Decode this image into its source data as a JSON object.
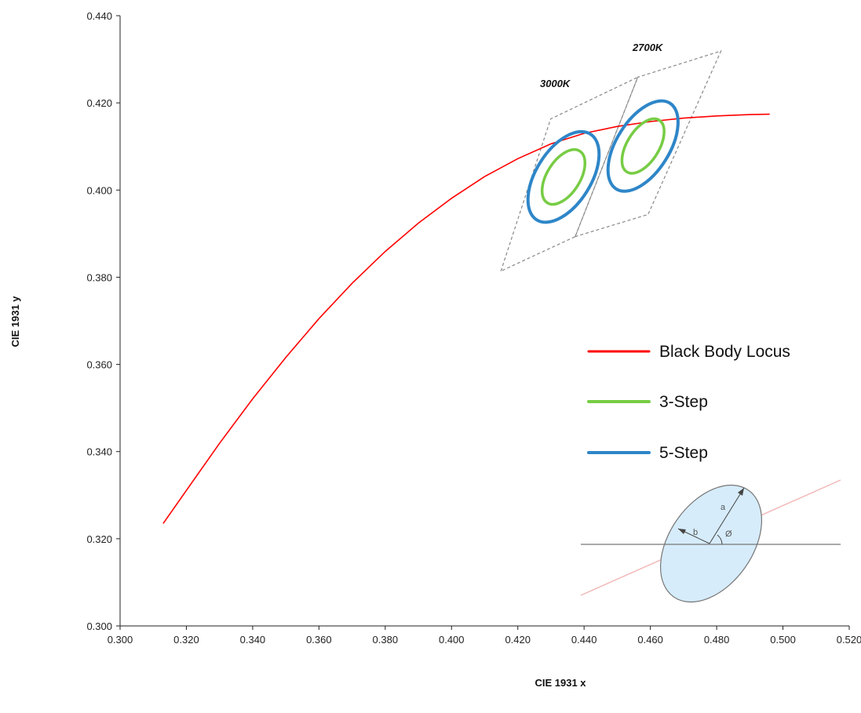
{
  "chart_data": {
    "type": "line",
    "title": "",
    "xlabel": "CIE 1931 x",
    "ylabel": "CIE 1931 y",
    "xlim": [
      0.3,
      0.52
    ],
    "ylim": [
      0.3,
      0.44
    ],
    "x_ticks": [
      "0.300",
      "0.320",
      "0.340",
      "0.360",
      "0.380",
      "0.400",
      "0.420",
      "0.440",
      "0.460",
      "0.480",
      "0.500",
      "0.520"
    ],
    "y_ticks": [
      "0.300",
      "0.320",
      "0.340",
      "0.360",
      "0.380",
      "0.400",
      "0.420",
      "0.440"
    ],
    "grid": false,
    "legend_position": "right",
    "series": [
      {
        "name": "Black Body Locus",
        "color": "#ff0000",
        "x": [
          0.313,
          0.32,
          0.33,
          0.34,
          0.35,
          0.36,
          0.37,
          0.38,
          0.39,
          0.4,
          0.41,
          0.42,
          0.43,
          0.44,
          0.45,
          0.46,
          0.47,
          0.48,
          0.49,
          0.496
        ],
        "y": [
          0.3235,
          0.3311,
          0.3419,
          0.3521,
          0.3616,
          0.3705,
          0.3786,
          0.3859,
          0.3924,
          0.3981,
          0.4031,
          0.4072,
          0.4106,
          0.413,
          0.4146,
          0.4157,
          0.4165,
          0.417,
          0.4173,
          0.4174
        ]
      },
      {
        "name": "3-Step",
        "color": "#77cc44",
        "ellipses": [
          {
            "cct": "3000K",
            "center_x": 0.4338,
            "center_y": 0.403,
            "semi_x": 0.005,
            "semi_y": 0.007,
            "tilt_deg": 58
          },
          {
            "cct": "2700K",
            "center_x": 0.4578,
            "center_y": 0.4101,
            "semi_x": 0.0048,
            "semi_y": 0.007,
            "tilt_deg": 58
          }
        ]
      },
      {
        "name": "5-Step",
        "color": "#2e86c8",
        "ellipses": [
          {
            "cct": "3000K",
            "center_x": 0.4338,
            "center_y": 0.403,
            "semi_x": 0.0083,
            "semi_y": 0.0116,
            "tilt_deg": 58
          },
          {
            "cct": "2700K",
            "center_x": 0.4578,
            "center_y": 0.4101,
            "semi_x": 0.008,
            "semi_y": 0.0116,
            "tilt_deg": 58
          }
        ]
      }
    ],
    "quadrangles": [
      {
        "label": "3000K",
        "x": [
          0.4149,
          0.4299,
          0.4562,
          0.4373
        ],
        "y": [
          0.3814,
          0.4163,
          0.4259,
          0.3893
        ]
      },
      {
        "label": "2700K",
        "x": [
          0.4373,
          0.4562,
          0.4813,
          0.4593
        ],
        "y": [
          0.3893,
          0.4259,
          0.4319,
          0.3944
        ]
      }
    ],
    "annotations": [
      "3000K",
      "2700K"
    ],
    "inset_labels": {
      "a": "a",
      "b": "b",
      "angle": "Ø"
    }
  }
}
